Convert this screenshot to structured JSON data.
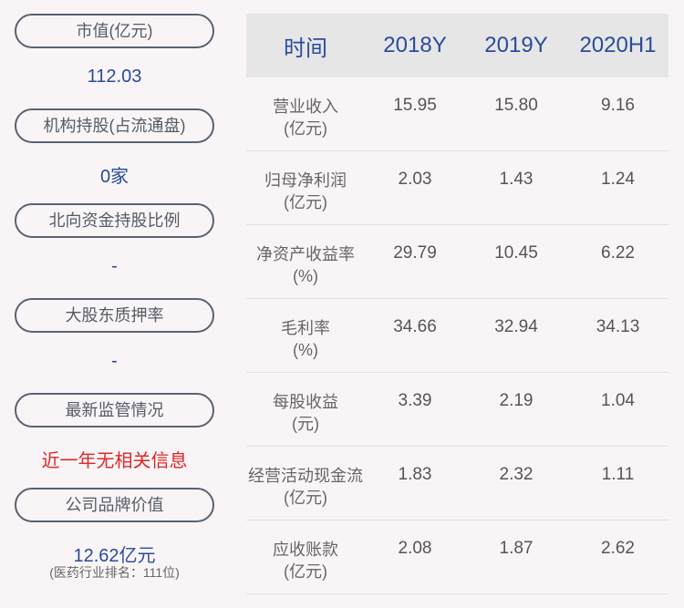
{
  "left": [
    {
      "label": "市值(亿元)",
      "value": "112.03"
    },
    {
      "label": "机构持股(占流通盘)",
      "value": "0家"
    },
    {
      "label": "北向资金持股比例",
      "value": "-"
    },
    {
      "label": "大股东质押率",
      "value": "-"
    },
    {
      "label": "最新监管情况",
      "value": "近一年无相关信息",
      "value_color": "#e02727"
    },
    {
      "label": "公司品牌价值",
      "value": "12.62亿元",
      "note": "(医药行业排名：111位)"
    }
  ],
  "table": {
    "headers": [
      "时间",
      "2018Y",
      "2019Y",
      "2020H1"
    ],
    "rows": [
      {
        "label1": "营业收入",
        "label2": "(亿元)",
        "values": [
          "15.95",
          "15.80",
          "9.16"
        ]
      },
      {
        "label1": "归母净利润",
        "label2": "(亿元)",
        "values": [
          "2.03",
          "1.43",
          "1.24"
        ]
      },
      {
        "label1": "净资产收益率",
        "label2": "(%)",
        "values": [
          "29.79",
          "10.45",
          "6.22"
        ]
      },
      {
        "label1": "毛利率",
        "label2": "(%)",
        "values": [
          "34.66",
          "32.94",
          "34.13"
        ]
      },
      {
        "label1": "每股收益",
        "label2": "(元)",
        "values": [
          "3.39",
          "2.19",
          "1.04"
        ]
      },
      {
        "label1": "经营活动现金流",
        "label2": "(亿元)",
        "values": [
          "1.83",
          "2.32",
          "1.11"
        ]
      },
      {
        "label1": "应收账款",
        "label2": "(亿元)",
        "values": [
          "2.08",
          "1.87",
          "2.62"
        ]
      }
    ]
  },
  "colors": {
    "accent": "#2b4a9b",
    "alert": "#e02727",
    "header_bg": "#e6e6e6"
  }
}
